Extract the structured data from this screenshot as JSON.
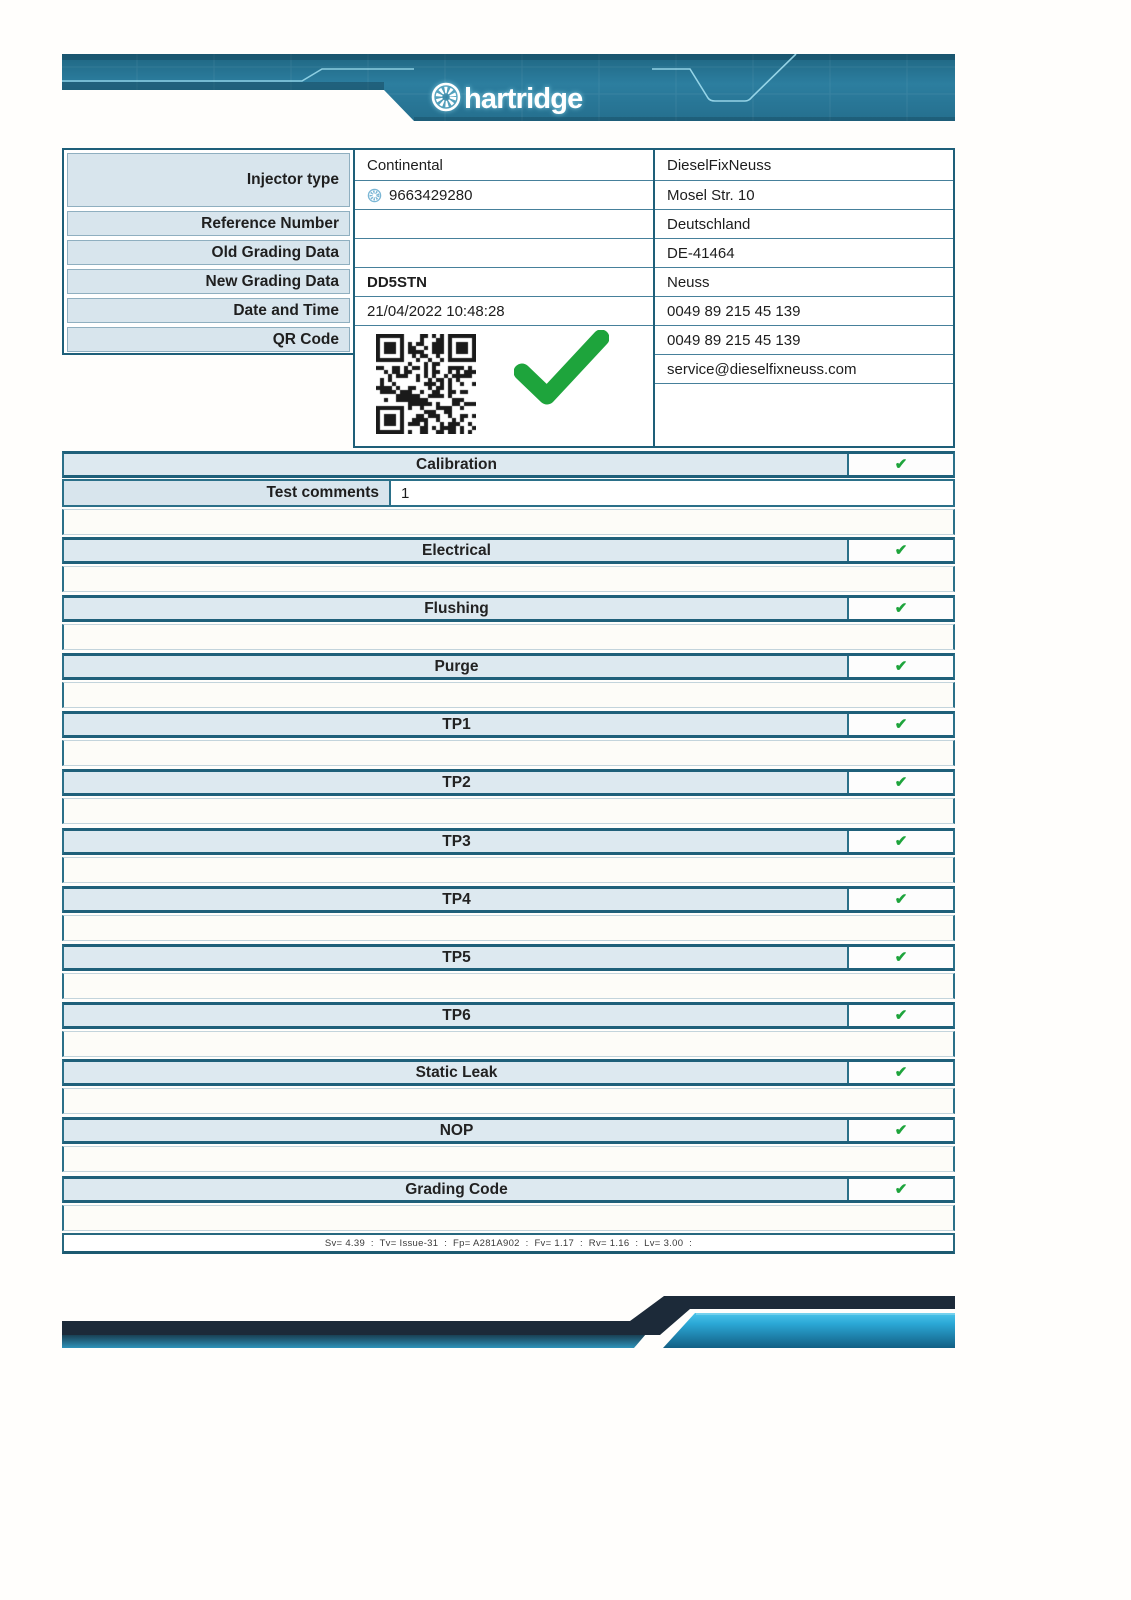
{
  "brand": {
    "logo_text": "hartridge"
  },
  "icons": {
    "check": "✔",
    "wheel": "hartridge-wheel"
  },
  "colors": {
    "banner_teal": "#2c7e9f",
    "border_teal": "#1e5f79",
    "row_bg": "#dde9f0",
    "label_bg": "#d8e5ed",
    "check_green": "#1ea43c",
    "footer_dark": "#1c2a39",
    "footer_cyan": "#2ba8d6"
  },
  "info": {
    "injector_type_label": "Injector type",
    "injector_make": "Continental",
    "injector_serial": "9663429280",
    "reference_label": "Reference Number",
    "reference_value": "",
    "old_grading_label": "Old Grading Data",
    "old_grading_value": "",
    "new_grading_label": "New Grading Data",
    "new_grading_value": "DD5STN",
    "datetime_label": "Date and Time",
    "datetime_value": "21/04/2022 10:48:28",
    "qr_label": "QR Code"
  },
  "workshop": {
    "name": "DieselFixNeuss",
    "street": "Mosel Str. 10",
    "country": "Deutschland",
    "postcode": "DE-41464",
    "city": "Neuss",
    "phone1": "0049 89 215 45 139",
    "phone2": "0049 89 215 45 139",
    "email": "service@dieselfixneuss.com"
  },
  "comments": {
    "label": "Test comments",
    "value": "1"
  },
  "tests": [
    {
      "label": "Calibration",
      "passed": true
    },
    {
      "label": "Electrical",
      "passed": true
    },
    {
      "label": "Flushing",
      "passed": true
    },
    {
      "label": "Purge",
      "passed": true
    },
    {
      "label": "TP1",
      "passed": true
    },
    {
      "label": "TP2",
      "passed": true
    },
    {
      "label": "TP3",
      "passed": true
    },
    {
      "label": "TP4",
      "passed": true
    },
    {
      "label": "TP5",
      "passed": true
    },
    {
      "label": "TP6",
      "passed": true
    },
    {
      "label": "Static Leak",
      "passed": true
    },
    {
      "label": "NOP",
      "passed": true
    },
    {
      "label": "Grading Code",
      "passed": true
    }
  ],
  "footer": {
    "version_line": "Sv= 4.39  :  Tv= Issue-31  :  Fp= A281A902  :  Fv= 1.17  :  Rv= 1.16  :  Lv= 3.00  :"
  }
}
